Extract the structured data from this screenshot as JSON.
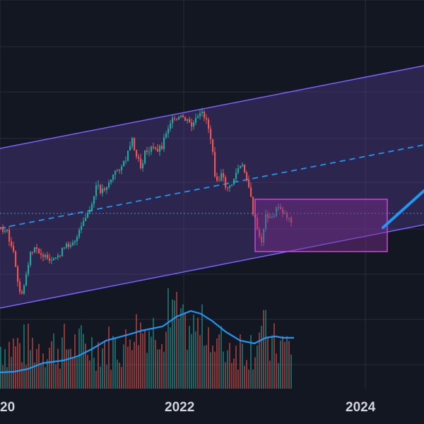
{
  "chart_data": {
    "type": "candlestick",
    "x_axis": {
      "ticks": [
        "20",
        "2022",
        "2024"
      ]
    },
    "y_range": [
      0,
      100
    ],
    "grid": true,
    "colors": {
      "background": "#131722",
      "grid": "#2a2e39",
      "up": "#26a69a",
      "down": "#ef5350",
      "channel_line": "#7b61ff",
      "channel_fill": "#5b3f9e",
      "midline": "#2196f3",
      "box_border": "#c44ad6",
      "box_fill": "#7b2d8e",
      "ma_line": "#2196f3",
      "hline": "#4a8fbf"
    },
    "channel": {
      "start": [
        0,
        45
      ],
      "end": [
        2024.6,
        110
      ],
      "lower_start": [
        0,
        -15
      ],
      "lower_end": [
        2024.6,
        50
      ]
    },
    "price_series": {
      "description_points": [
        [
          0,
          40
        ],
        [
          4,
          30
        ],
        [
          8,
          -10
        ],
        [
          12,
          15
        ],
        [
          16,
          20
        ],
        [
          20,
          30
        ],
        [
          24,
          55
        ],
        [
          28,
          60
        ],
        [
          32,
          78
        ],
        [
          36,
          90
        ],
        [
          40,
          86
        ],
        [
          44,
          90
        ],
        [
          48,
          92
        ],
        [
          52,
          84
        ],
        [
          56,
          55
        ],
        [
          60,
          45
        ],
        [
          64,
          52
        ],
        [
          68,
          42
        ],
        [
          72,
          32
        ],
        [
          76,
          35
        ],
        [
          80,
          40
        ],
        [
          84,
          37
        ]
      ]
    },
    "box": {
      "x0": 70,
      "x1": 100,
      "y0": 20,
      "y1": 46
    },
    "forecast_line": {
      "from": [
        97,
        31
      ],
      "to": [
        110,
        52
      ]
    },
    "volume_ma": [
      [
        0,
        8
      ],
      [
        10,
        10
      ],
      [
        20,
        18
      ],
      [
        30,
        28
      ],
      [
        40,
        45
      ],
      [
        50,
        60
      ],
      [
        56,
        55
      ],
      [
        62,
        42
      ],
      [
        68,
        30
      ],
      [
        72,
        34
      ],
      [
        76,
        30
      ]
    ]
  }
}
